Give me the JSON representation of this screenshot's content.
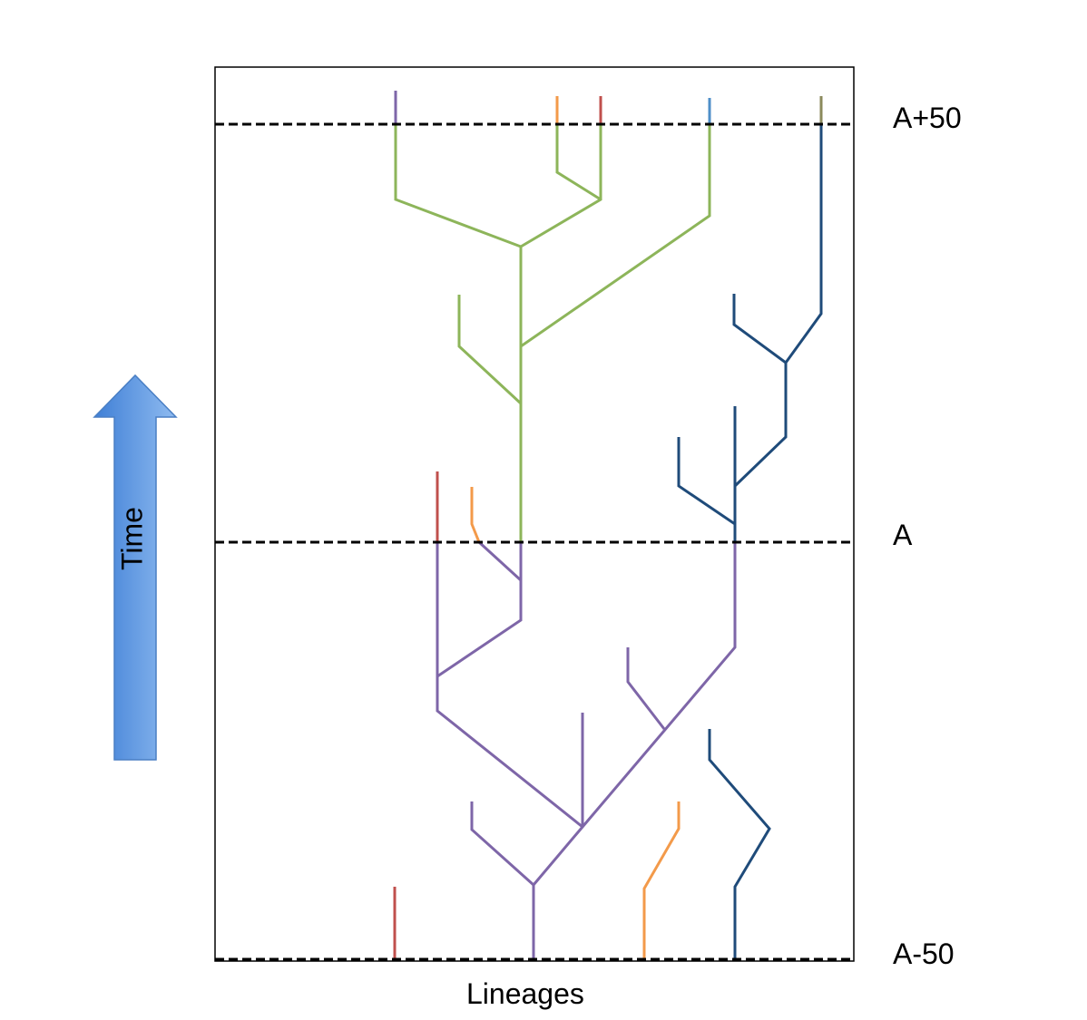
{
  "time_markers": [
    "A+50",
    "A",
    "A-50"
  ],
  "x_axis_label": "Lineages",
  "arrow_label": "Time",
  "colors": {
    "green": "#8db55a",
    "purple": "#7e66a8",
    "navy": "#1f4b7a",
    "orange": "#f39a4a",
    "red": "#c0504d",
    "lightblue": "#4f8fc9",
    "olive": "#8b8a5c",
    "arrow": "#5b96e0"
  }
}
